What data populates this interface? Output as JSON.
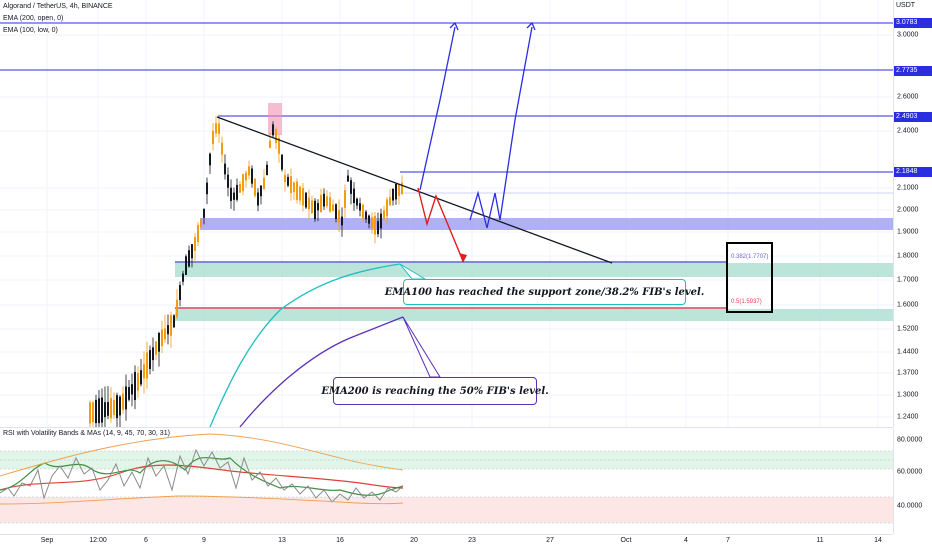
{
  "chart_title": "Algorand / TetherUS, 4h, BINANCE",
  "indicators": {
    "ema200": "EMA (200, open, 0)",
    "ema100": "EMA (100, low, 0)",
    "rsi": "RSI with Volatility Bands & MAs (14, 9, 45, 70, 30, 31)"
  },
  "currency_label": "USDT",
  "price_ticks": [
    "3.0000",
    "2.6000",
    "2.4000",
    "2.1000",
    "2.0000",
    "1.9000",
    "1.8000",
    "1.7000",
    "1.6000",
    "1.5200",
    "1.4400",
    "1.3700",
    "1.3000",
    "1.2400"
  ],
  "price_tags": [
    {
      "value": "3.0783",
      "color": "#2a2ee0"
    },
    {
      "value": "2.7735",
      "color": "#2a2ee0"
    },
    {
      "value": "2.4903",
      "color": "#2a2ee0"
    },
    {
      "value": "2.1848",
      "color": "#2a2ee0"
    }
  ],
  "horizontal_levels": [
    3.0783,
    2.7735,
    2.4903,
    2.1848
  ],
  "fib_labels": {
    "fib382": "0.382(1.7707)",
    "fib50": "0.5(1.5937)"
  },
  "callouts": {
    "ema100": "EMA100 has reached the support zone/38.2% FIB's level.",
    "ema200": "EMA200 is reaching the 50% FIB's level."
  },
  "rsi_ticks": [
    "80.0000",
    "60.0000",
    "40.0000"
  ],
  "time_labels": [
    "Sep",
    "12:00",
    "6",
    "9",
    "13",
    "16",
    "20",
    "23",
    "27",
    "Oct",
    "4",
    "7",
    "11",
    "14"
  ],
  "colors": {
    "level_line": "#2a2ee0",
    "ema100": "#1fbfbf",
    "ema200": "#5b2fb8",
    "trendline": "#131722",
    "support_zone": "#9b9cf2",
    "fib_zone": "#a6dccd",
    "up_candle": "#f39c12",
    "down_candle": "#131722",
    "bear_arrow": "#e01e1e",
    "bull_arrow": "#2a2ee0"
  }
}
